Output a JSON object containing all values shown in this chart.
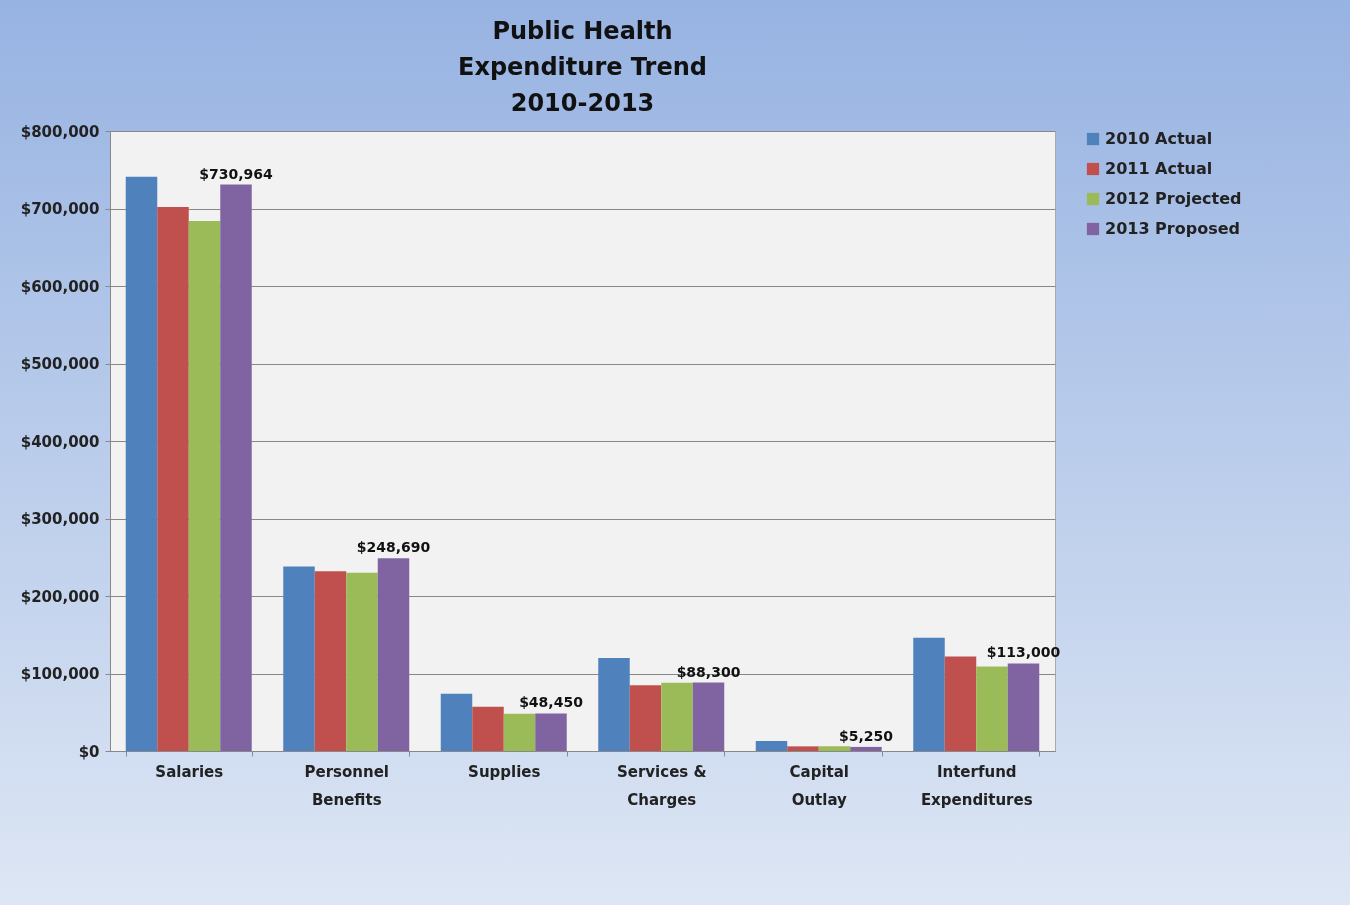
{
  "chart_data": {
    "type": "bar",
    "title": "Public Health\nExpenditure Trend\n2010-2013",
    "categories": [
      "Salaries",
      "Personnel Benefits",
      "Supplies",
      "Services & Charges",
      "Capital Outlay",
      "Interfund Expenditures"
    ],
    "series": [
      {
        "name": "2010 Actual",
        "color": "#4f81bd",
        "values": [
          741000,
          238000,
          74000,
          120000,
          13000,
          146000
        ]
      },
      {
        "name": "2011 Actual",
        "color": "#c0504d",
        "values": [
          702000,
          232000,
          57000,
          85000,
          6000,
          122000
        ]
      },
      {
        "name": "2012 Projected",
        "color": "#9bbb59",
        "values": [
          684000,
          230000,
          48000,
          88000,
          6000,
          109000
        ]
      },
      {
        "name": "2013 Proposed",
        "color": "#8064a2",
        "values": [
          730964,
          248690,
          48450,
          88300,
          5250,
          113000
        ],
        "value_labels": [
          "$730,964",
          "$248,690",
          "$48,450",
          "$88,300",
          "$5,250",
          "$113,000"
        ]
      }
    ],
    "ylim": [
      0,
      800000
    ],
    "yticks": [
      {
        "value": 0,
        "label": "$0"
      },
      {
        "value": 100000,
        "label": "$100,000"
      },
      {
        "value": 200000,
        "label": "$200,000"
      },
      {
        "value": 300000,
        "label": "$300,000"
      },
      {
        "value": 400000,
        "label": "$400,000"
      },
      {
        "value": 500000,
        "label": "$500,000"
      },
      {
        "value": 600000,
        "label": "$600,000"
      },
      {
        "value": 700000,
        "label": "$700,000"
      },
      {
        "value": 800000,
        "label": "$800,000"
      }
    ],
    "grid": "y",
    "legend": "right"
  }
}
